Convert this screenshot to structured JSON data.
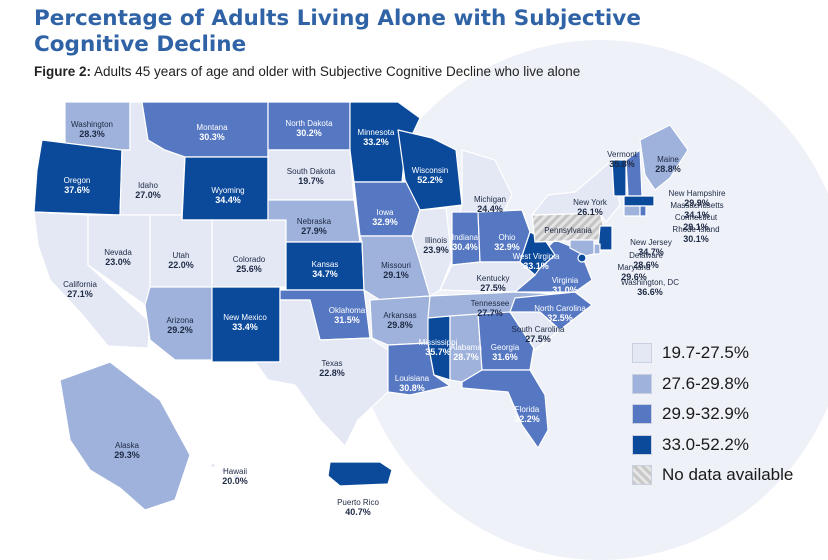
{
  "title": "Percentage of Adults Living Alone with Subjective Cognitive Decline",
  "subtitle_prefix": "Figure 2:",
  "subtitle_text": " Adults 45 years of age and older with Subjective Cognitive Decline who live alone",
  "colors": {
    "bin1": "#e3e8f4",
    "bin2": "#9eb2db",
    "bin3": "#5678c2",
    "bin4": "#0b4a9b",
    "nodata": "#d9d9d9"
  },
  "legend": [
    {
      "label": "19.7-27.5%",
      "color": "bin1"
    },
    {
      "label": "27.6-29.8%",
      "color": "bin2"
    },
    {
      "label": "29.9-32.9%",
      "color": "bin3"
    },
    {
      "label": "33.0-52.2%",
      "color": "bin4"
    },
    {
      "label": "No data available",
      "color": "nodata"
    }
  ],
  "states": [
    {
      "name": "Washington",
      "value": "28.3%",
      "bin": 2
    },
    {
      "name": "Oregon",
      "value": "37.6%",
      "bin": 4
    },
    {
      "name": "California",
      "value": "27.1%",
      "bin": 1
    },
    {
      "name": "Idaho",
      "value": "27.0%",
      "bin": 1
    },
    {
      "name": "Nevada",
      "value": "23.0%",
      "bin": 1
    },
    {
      "name": "Montana",
      "value": "30.3%",
      "bin": 3
    },
    {
      "name": "Wyoming",
      "value": "34.4%",
      "bin": 4
    },
    {
      "name": "Utah",
      "value": "22.0%",
      "bin": 1
    },
    {
      "name": "Colorado",
      "value": "25.6%",
      "bin": 1
    },
    {
      "name": "Arizona",
      "value": "29.2%",
      "bin": 2
    },
    {
      "name": "New Mexico",
      "value": "33.4%",
      "bin": 4
    },
    {
      "name": "North Dakota",
      "value": "30.2%",
      "bin": 3
    },
    {
      "name": "South Dakota",
      "value": "19.7%",
      "bin": 1
    },
    {
      "name": "Nebraska",
      "value": "27.9%",
      "bin": 2
    },
    {
      "name": "Kansas",
      "value": "34.7%",
      "bin": 4
    },
    {
      "name": "Oklahoma",
      "value": "31.5%",
      "bin": 3
    },
    {
      "name": "Texas",
      "value": "22.8%",
      "bin": 1
    },
    {
      "name": "Minnesota",
      "value": "33.2%",
      "bin": 4
    },
    {
      "name": "Iowa",
      "value": "32.9%",
      "bin": 3
    },
    {
      "name": "Missouri",
      "value": "29.1%",
      "bin": 2
    },
    {
      "name": "Arkansas",
      "value": "29.8%",
      "bin": 2
    },
    {
      "name": "Louisiana",
      "value": "30.8%",
      "bin": 3
    },
    {
      "name": "Wisconsin",
      "value": "52.2%",
      "bin": 4
    },
    {
      "name": "Illinois",
      "value": "23.9%",
      "bin": 1
    },
    {
      "name": "Michigan",
      "value": "24.4%",
      "bin": 1
    },
    {
      "name": "Indiana",
      "value": "30.4%",
      "bin": 3
    },
    {
      "name": "Ohio",
      "value": "32.9%",
      "bin": 3
    },
    {
      "name": "Kentucky",
      "value": "27.5%",
      "bin": 1
    },
    {
      "name": "Tennessee",
      "value": "27.7%",
      "bin": 2
    },
    {
      "name": "Mississippi",
      "value": "35.7%",
      "bin": 4
    },
    {
      "name": "Alabama",
      "value": "28.7%",
      "bin": 2
    },
    {
      "name": "Georgia",
      "value": "31.6%",
      "bin": 3
    },
    {
      "name": "Florida",
      "value": "32.2%",
      "bin": 3
    },
    {
      "name": "South Carolina",
      "value": "27.5%",
      "bin": 1
    },
    {
      "name": "North Carolina",
      "value": "32.5%",
      "bin": 3
    },
    {
      "name": "Virginia",
      "value": "31.0%",
      "bin": 3
    },
    {
      "name": "West Virginia",
      "value": "33.1%",
      "bin": 4
    },
    {
      "name": "Pennsylvania",
      "value": "",
      "bin": 0
    },
    {
      "name": "New York",
      "value": "26.1%",
      "bin": 1
    },
    {
      "name": "Vermont",
      "value": "35.8%",
      "bin": 4
    },
    {
      "name": "Maine",
      "value": "28.8%",
      "bin": 2
    },
    {
      "name": "New Hampshire",
      "value": "29.9%",
      "bin": 3
    },
    {
      "name": "Massachusetts",
      "value": "34.1%",
      "bin": 4
    },
    {
      "name": "Connecticut",
      "value": "29.1%",
      "bin": 2
    },
    {
      "name": "Rhode Island",
      "value": "30.1%",
      "bin": 3
    },
    {
      "name": "New Jersey",
      "value": "34.7%",
      "bin": 4
    },
    {
      "name": "Delaware",
      "value": "28.6%",
      "bin": 2
    },
    {
      "name": "Maryland",
      "value": "29.6%",
      "bin": 2
    },
    {
      "name": "Washington, DC",
      "value": "36.6%",
      "bin": 4
    },
    {
      "name": "Alaska",
      "value": "29.3%",
      "bin": 2
    },
    {
      "name": "Hawaii",
      "value": "20.0%",
      "bin": 1
    },
    {
      "name": "Puerto Rico",
      "value": "40.7%",
      "bin": 4
    }
  ]
}
